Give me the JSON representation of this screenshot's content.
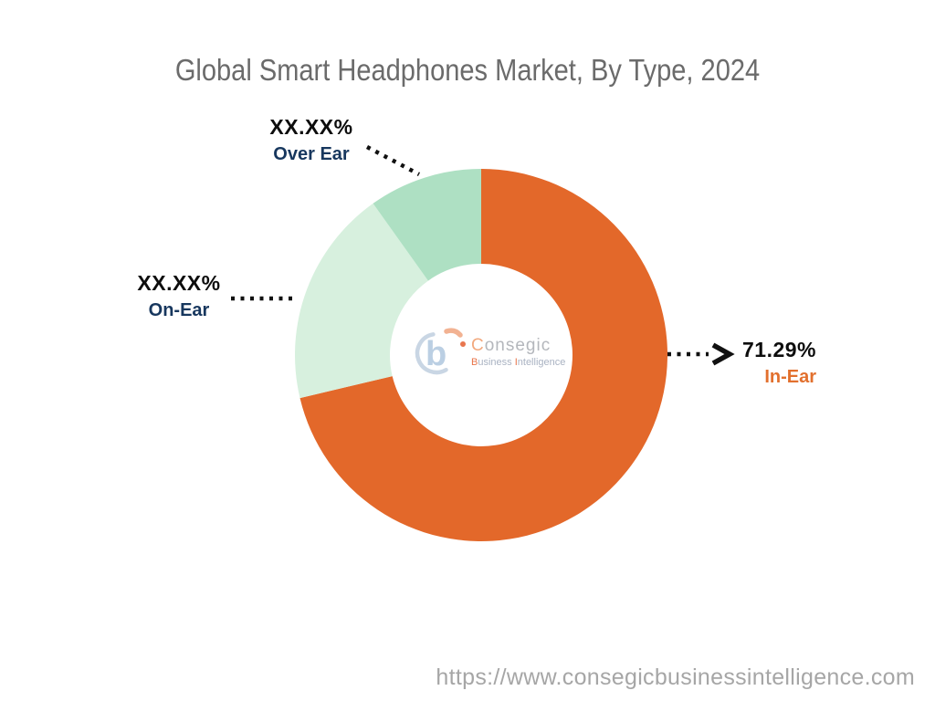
{
  "chart": {
    "title": "Global Smart Headphones Market, By Type, 2024"
  },
  "chart_data": {
    "type": "pie",
    "subtype": "donut",
    "title": "Global Smart Headphones Market, By Type, 2024",
    "unit": "percent market share",
    "start_angle_deg": 0,
    "direction": "clockwise",
    "inner_radius_ratio": 0.49,
    "legend_position": "callout-labels",
    "segments": [
      {
        "label": "In-Ear",
        "display_value": "71.29%",
        "value_pct": 71.29,
        "color": "#E3682A"
      },
      {
        "label": "On-Ear",
        "display_value": "XX.XX%",
        "value_pct": 18.85,
        "color": "#D7F0DE"
      },
      {
        "label": "Over Ear",
        "display_value": "XX.XX%",
        "value_pct": 9.86,
        "color": "#AEE0C3"
      }
    ]
  },
  "labels": {
    "over_ear": {
      "value": "XX.XX%",
      "name": "Over Ear"
    },
    "on_ear": {
      "value": "XX.XX%",
      "name": "On-Ear"
    },
    "in_ear": {
      "value": "71.29%",
      "name": "In-Ear"
    }
  },
  "logo": {
    "brand": "Consegic",
    "tagline_word1": "Business",
    "tagline_word2": "Intelligence"
  },
  "footer": {
    "url": "https://www.consegicbusinessintelligence.com"
  },
  "colors": {
    "title_text": "#6B6B6B",
    "value_text": "#0D0D0D",
    "navy_label": "#17375E",
    "orange_label": "#E2702E",
    "leader_line": "#111111",
    "url_text": "#A6A6A6",
    "logo_blue": "#BBCFE3",
    "logo_orange": "#E8744A"
  }
}
